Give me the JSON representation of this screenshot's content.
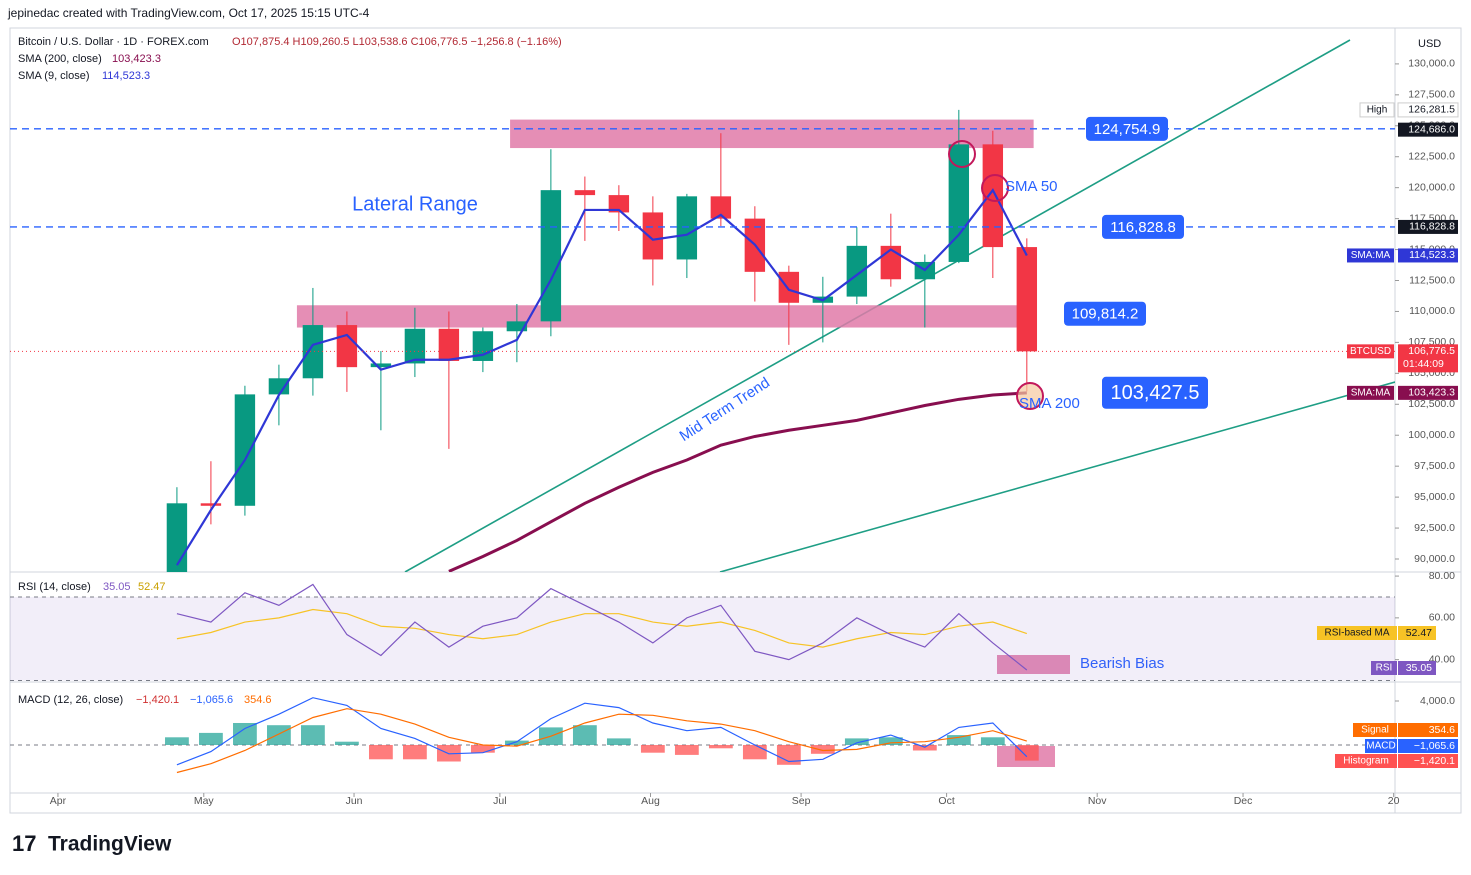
{
  "header": {
    "credit": "jepinedac created with TradingView.com, Oct 17, 2025 15:15 UTC-4",
    "symbol": "Bitcoin / U.S. Dollar · 1D · FOREX.com",
    "ohlc": "O107,875.4 H109,260.5 L103,538.6 C106,776.5 −1,256.8 (−1.16%)",
    "currency": "USD"
  },
  "footer": {
    "brand": "TradingView"
  },
  "chart_data": [
    {
      "type": "candlestick",
      "x": [
        3.5,
        4.5,
        5.5,
        6.5,
        7.5,
        8.5,
        9.5,
        10.5,
        11.5,
        12.5,
        13.5,
        14.5,
        15.5,
        16.5,
        17.5,
        18.5,
        19.5,
        20.5,
        21.5,
        22.5,
        23.5,
        24.5,
        25.5,
        26.5,
        27.5,
        28.5
      ],
      "open": [
        87500,
        94500,
        94300,
        103300,
        104600,
        108900,
        105500,
        105800,
        108600,
        106000,
        108400,
        109200,
        119800,
        119400,
        118000,
        114200,
        119300,
        117500,
        113200,
        110700,
        111200,
        115300,
        112600,
        114000,
        123500,
        115200
      ],
      "high": [
        95800,
        97900,
        104000,
        105700,
        111900,
        110000,
        106800,
        110300,
        110000,
        108700,
        110600,
        123100,
        120900,
        120200,
        119300,
        119500,
        124400,
        118500,
        113700,
        112800,
        116800,
        117900,
        114600,
        126281.5,
        124600,
        115900
      ],
      "low": [
        86500,
        92800,
        93500,
        100800,
        103200,
        103500,
        100400,
        104700,
        98900,
        105100,
        105900,
        108000,
        115700,
        116500,
        112100,
        112700,
        116900,
        110800,
        107300,
        107500,
        110600,
        112000,
        108700,
        113900,
        112700,
        103538.6
      ],
      "close": [
        94500,
        94300,
        103300,
        104600,
        108900,
        105500,
        105800,
        108600,
        106000,
        108400,
        109200,
        119800,
        119400,
        118000,
        114200,
        119300,
        117500,
        113200,
        110700,
        111200,
        115300,
        112600,
        114000,
        123500,
        115200,
        106776.5
      ],
      "up_color": "#089981",
      "down_color": "#f23645",
      "xlim": [
        -1.41,
        39.33
      ],
      "xticks": [
        {
          "value": 0,
          "label": "Apr"
        },
        {
          "value": 4.29,
          "label": "May"
        },
        {
          "value": 8.71,
          "label": "Jun"
        },
        {
          "value": 13,
          "label": "Jul"
        },
        {
          "value": 17.43,
          "label": "Aug"
        },
        {
          "value": 21.86,
          "label": "Sep"
        },
        {
          "value": 26.14,
          "label": "Oct"
        },
        {
          "value": 30.57,
          "label": "Nov"
        },
        {
          "value": 34.86,
          "label": "Dec"
        },
        {
          "value": 39.29,
          "label": "20"
        }
      ],
      "ylim": [
        88950,
        132900
      ],
      "yticks": [
        {
          "value": 90000,
          "label": "90,000.0"
        },
        {
          "value": 92500,
          "label": "92,500.0"
        },
        {
          "value": 95000,
          "label": "95,000.0"
        },
        {
          "value": 97500,
          "label": "97,500.0"
        },
        {
          "value": 100000,
          "label": "100,000.0"
        },
        {
          "value": 102500,
          "label": "102,500.0"
        },
        {
          "value": 105000,
          "label": "105,000.0"
        },
        {
          "value": 107500,
          "label": "107,500.0"
        },
        {
          "value": 110000,
          "label": "110,000.0"
        },
        {
          "value": 112500,
          "label": "112,500.0"
        },
        {
          "value": 115000,
          "label": "115,000.0"
        },
        {
          "value": 117500,
          "label": "117,500.0"
        },
        {
          "value": 120000,
          "label": "120,000.0"
        },
        {
          "value": 122500,
          "label": "122,500.0"
        },
        {
          "value": 125000,
          "label": "125,000.0"
        },
        {
          "value": 127500,
          "label": "127,500.0"
        },
        {
          "value": 130000,
          "label": "130,000.0"
        }
      ],
      "series": [
        {
          "name": "SMA (9, close)",
          "color": "#2f37d6",
          "values": [
            89500,
            93960,
            98000,
            103250,
            107300,
            108100,
            105300,
            106100,
            106100,
            106500,
            107700,
            112550,
            118200,
            118200,
            115800,
            116200,
            117800,
            115400,
            111750,
            110900,
            112950,
            115000,
            113350,
            116200,
            119800,
            114523.3
          ]
        },
        {
          "name": "SMA (200, close)",
          "color": "#880e4f",
          "values": [
            null,
            null,
            null,
            null,
            null,
            null,
            null,
            null,
            89000,
            90200,
            91500,
            93000,
            94500,
            95800,
            97000,
            98000,
            99200,
            99900,
            100400,
            100800,
            101200,
            101800,
            102400,
            102900,
            103250,
            103423.3
          ]
        }
      ],
      "zones": [
        {
          "x": [
            13.3,
            28.7
          ],
          "from": 123200,
          "to": 125500
        },
        {
          "x": [
            7.03,
            28.7
          ],
          "from": 108700,
          "to": 110500
        }
      ],
      "levels": [
        {
          "value": 124754.9,
          "label": "124,754.9",
          "dashed": true
        },
        {
          "value": 116828.8,
          "label": "116,828.8",
          "dashed": true
        },
        {
          "value": 109814.2,
          "label": "109,814.2"
        },
        {
          "value": 103427.5,
          "label": "103,427.5"
        }
      ],
      "price_tags": [
        {
          "name": "High",
          "value": 126281.5,
          "label": "126,281.5",
          "color": "#ffffff"
        },
        {
          "value": 124686.0,
          "label": "124,686.0",
          "color": "#131722"
        },
        {
          "value": 116828.8,
          "label": "116,828.8",
          "color": "#131722"
        },
        {
          "name": "SMA:MA",
          "value": 114523.3,
          "label": "114,523.3",
          "color": "#2f37d6"
        },
        {
          "name": "BTCUSD",
          "value": 106776.5,
          "label": "106,776.5",
          "color": "#f23645",
          "countdown": "01:44:09"
        },
        {
          "name": "SMA:MA",
          "value": 103423.3,
          "label": "103,423.3",
          "color": "#880e4f"
        }
      ],
      "annotations": {
        "range": "Lateral Range",
        "sma50": "SMA 50",
        "trend": "Mid Term Trend",
        "sma200": "SMA 200"
      }
    },
    {
      "type": "line",
      "title": "RSI (14, close)",
      "x": [
        3.5,
        4.5,
        5.5,
        6.5,
        7.5,
        8.5,
        9.5,
        10.5,
        11.5,
        12.5,
        13.5,
        14.5,
        15.5,
        16.5,
        17.5,
        18.5,
        19.5,
        20.5,
        21.5,
        22.5,
        23.5,
        24.5,
        25.5,
        26.5,
        27.5,
        28.5
      ],
      "series": [
        {
          "name": "RSI",
          "color": "#7e57c2",
          "values": [
            62,
            58,
            72,
            66,
            76,
            52,
            42,
            58,
            46,
            56,
            60,
            74,
            66,
            58,
            48,
            60,
            66,
            44,
            40,
            48,
            60,
            52,
            46,
            62,
            48,
            35.05
          ],
          "label": "35.05"
        },
        {
          "name": "RSI-based MA",
          "color": "#f7c325",
          "values": [
            50,
            53,
            58,
            60,
            64,
            62,
            56,
            55,
            52,
            50,
            52,
            58,
            62,
            62,
            58,
            56,
            58,
            54,
            48,
            46,
            50,
            53,
            52,
            56,
            58,
            52.47
          ],
          "label": "52.47"
        }
      ],
      "ylim": [
        29.3,
        81.95
      ],
      "yticks": [
        {
          "value": 40,
          "label": "40.00"
        },
        {
          "value": 60,
          "label": "60.00"
        },
        {
          "value": 80,
          "label": "80.00"
        }
      ],
      "bands": [
        30,
        70
      ],
      "annotation": "Bearish Bias"
    },
    {
      "type": "macd",
      "title": "MACD (12, 26, close)",
      "x": [
        3.5,
        4.5,
        5.5,
        6.5,
        7.5,
        8.5,
        9.5,
        10.5,
        11.5,
        12.5,
        13.5,
        14.5,
        15.5,
        16.5,
        17.5,
        18.5,
        19.5,
        20.5,
        21.5,
        22.5,
        23.5,
        24.5,
        25.5,
        26.5,
        27.5,
        28.5
      ],
      "histogram": {
        "name": "Histogram",
        "values": [
          700,
          1100,
          2000,
          1800,
          1800,
          300,
          -1300,
          -1300,
          -1500,
          -700,
          400,
          1600,
          1800,
          600,
          -700,
          -900,
          -300,
          -1300,
          -1800,
          -800,
          600,
          700,
          -500,
          900,
          700,
          -1420.1
        ],
        "label": "−1,420.1",
        "up_color": "#26a69a",
        "down_color": "#ff5252"
      },
      "series": [
        {
          "name": "MACD",
          "color": "#2962ff",
          "values": [
            -1800,
            -600,
            1500,
            2800,
            4300,
            3600,
            1500,
            600,
            -800,
            -700,
            300,
            2400,
            3800,
            3400,
            2000,
            1300,
            1600,
            0,
            -1500,
            -1300,
            200,
            900,
            -200,
            1600,
            2000,
            -1065.6
          ],
          "label": "−1,065.6"
        },
        {
          "name": "Signal",
          "color": "#ff6d00",
          "values": [
            -2500,
            -1700,
            -500,
            1000,
            2500,
            3300,
            2800,
            1900,
            700,
            0,
            -100,
            800,
            2000,
            2800,
            2700,
            2200,
            1900,
            1300,
            300,
            -500,
            -400,
            200,
            300,
            700,
            1300,
            354.6
          ],
          "label": "354.6"
        }
      ],
      "ylim": [
        -4364,
        5636
      ],
      "yticks": [
        {
          "value": 4000,
          "label": "4,000.0"
        }
      ]
    }
  ]
}
